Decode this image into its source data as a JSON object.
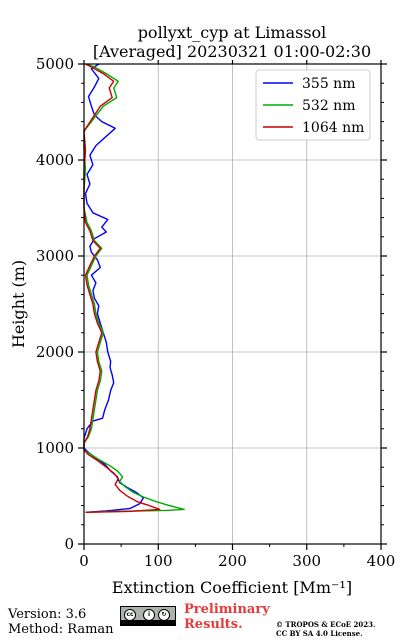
{
  "chart_data": {
    "type": "line",
    "title_lines": [
      "pollyxt_cyp at Limassol",
      "[Averaged] 20230321 01:00-02:30"
    ],
    "xlabel": "Extinction Coefficient [Mm⁻¹]",
    "ylabel": "Height (m)",
    "xlim": [
      0,
      400
    ],
    "ylim": [
      0,
      5000
    ],
    "x_ticks": [
      0,
      100,
      200,
      300,
      400
    ],
    "y_ticks": [
      0,
      1000,
      2000,
      3000,
      4000,
      5000
    ],
    "grid": true,
    "legend_position": "top-right",
    "series": [
      {
        "name": "355 nm",
        "color": "#0000ff",
        "points": [
          [
            2,
            330
          ],
          [
            30,
            345
          ],
          [
            62,
            370
          ],
          [
            75,
            420
          ],
          [
            80,
            480
          ],
          [
            70,
            540
          ],
          [
            58,
            590
          ],
          [
            48,
            640
          ],
          [
            45,
            700
          ],
          [
            36,
            760
          ],
          [
            28,
            830
          ],
          [
            15,
            900
          ],
          [
            5,
            960
          ],
          [
            0,
            1000
          ],
          [
            0,
            1100
          ],
          [
            4,
            1200
          ],
          [
            12,
            1280
          ],
          [
            25,
            1310
          ],
          [
            28,
            1400
          ],
          [
            33,
            1500
          ],
          [
            36,
            1600
          ],
          [
            40,
            1680
          ],
          [
            38,
            1760
          ],
          [
            35,
            1840
          ],
          [
            36,
            1900
          ],
          [
            32,
            2000
          ],
          [
            30,
            2100
          ],
          [
            26,
            2200
          ],
          [
            22,
            2300
          ],
          [
            18,
            2400
          ],
          [
            20,
            2480
          ],
          [
            14,
            2560
          ],
          [
            12,
            2640
          ],
          [
            16,
            2720
          ],
          [
            10,
            2800
          ],
          [
            22,
            2880
          ],
          [
            18,
            2960
          ],
          [
            10,
            3040
          ],
          [
            8,
            3100
          ],
          [
            14,
            3180
          ],
          [
            30,
            3250
          ],
          [
            24,
            3300
          ],
          [
            32,
            3380
          ],
          [
            12,
            3450
          ],
          [
            4,
            3550
          ],
          [
            2,
            3650
          ],
          [
            8,
            3750
          ],
          [
            4,
            3850
          ],
          [
            12,
            3950
          ],
          [
            8,
            4050
          ],
          [
            16,
            4150
          ],
          [
            42,
            4330
          ],
          [
            24,
            4400
          ],
          [
            14,
            4470
          ],
          [
            10,
            4560
          ],
          [
            6,
            4660
          ],
          [
            14,
            4760
          ],
          [
            20,
            4850
          ],
          [
            10,
            4950
          ],
          [
            20,
            5000
          ]
        ]
      },
      {
        "name": "532 nm",
        "color": "#00aa00",
        "points": [
          [
            2,
            330
          ],
          [
            40,
            340
          ],
          [
            110,
            350
          ],
          [
            135,
            360
          ],
          [
            115,
            400
          ],
          [
            98,
            440
          ],
          [
            80,
            490
          ],
          [
            66,
            540
          ],
          [
            55,
            600
          ],
          [
            48,
            650
          ],
          [
            52,
            700
          ],
          [
            45,
            760
          ],
          [
            36,
            810
          ],
          [
            20,
            880
          ],
          [
            8,
            940
          ],
          [
            0,
            980
          ],
          [
            0,
            1050
          ],
          [
            6,
            1120
          ],
          [
            10,
            1200
          ],
          [
            12,
            1300
          ],
          [
            14,
            1400
          ],
          [
            16,
            1500
          ],
          [
            18,
            1600
          ],
          [
            22,
            1700
          ],
          [
            24,
            1800
          ],
          [
            20,
            1900
          ],
          [
            18,
            2000
          ],
          [
            22,
            2100
          ],
          [
            26,
            2200
          ],
          [
            20,
            2300
          ],
          [
            16,
            2400
          ],
          [
            14,
            2500
          ],
          [
            10,
            2600
          ],
          [
            6,
            2700
          ],
          [
            4,
            2800
          ],
          [
            10,
            2900
          ],
          [
            16,
            3000
          ],
          [
            24,
            3080
          ],
          [
            14,
            3160
          ],
          [
            10,
            3260
          ],
          [
            4,
            3350
          ],
          [
            0,
            3500
          ],
          [
            0,
            3700
          ],
          [
            2,
            3900
          ],
          [
            0,
            4100
          ],
          [
            0,
            4300
          ],
          [
            12,
            4420
          ],
          [
            26,
            4560
          ],
          [
            44,
            4650
          ],
          [
            40,
            4750
          ],
          [
            46,
            4820
          ],
          [
            30,
            4900
          ],
          [
            16,
            4960
          ],
          [
            4,
            5000
          ]
        ]
      },
      {
        "name": "1064 nm",
        "color": "#cc0000",
        "points": [
          [
            2,
            330
          ],
          [
            60,
            340
          ],
          [
            102,
            360
          ],
          [
            88,
            400
          ],
          [
            72,
            440
          ],
          [
            58,
            500
          ],
          [
            48,
            560
          ],
          [
            42,
            620
          ],
          [
            46,
            680
          ],
          [
            40,
            740
          ],
          [
            30,
            800
          ],
          [
            18,
            870
          ],
          [
            6,
            930
          ],
          [
            0,
            980
          ],
          [
            0,
            1050
          ],
          [
            5,
            1120
          ],
          [
            8,
            1200
          ],
          [
            10,
            1300
          ],
          [
            12,
            1400
          ],
          [
            14,
            1500
          ],
          [
            16,
            1600
          ],
          [
            20,
            1700
          ],
          [
            22,
            1800
          ],
          [
            18,
            1900
          ],
          [
            16,
            2000
          ],
          [
            20,
            2100
          ],
          [
            24,
            2200
          ],
          [
            18,
            2300
          ],
          [
            14,
            2400
          ],
          [
            12,
            2500
          ],
          [
            8,
            2600
          ],
          [
            4,
            2700
          ],
          [
            2,
            2800
          ],
          [
            8,
            2900
          ],
          [
            14,
            3000
          ],
          [
            22,
            3080
          ],
          [
            12,
            3160
          ],
          [
            8,
            3260
          ],
          [
            2,
            3350
          ],
          [
            0,
            3500
          ],
          [
            0,
            3700
          ],
          [
            0,
            3900
          ],
          [
            2,
            4100
          ],
          [
            0,
            4300
          ],
          [
            10,
            4420
          ],
          [
            22,
            4560
          ],
          [
            38,
            4650
          ],
          [
            34,
            4750
          ],
          [
            40,
            4820
          ],
          [
            26,
            4900
          ],
          [
            12,
            4960
          ],
          [
            2,
            5000
          ]
        ]
      }
    ]
  },
  "footer": {
    "version": "Version: 3.6",
    "method": "Method: Raman",
    "preliminary_line1": "Preliminary",
    "preliminary_line2": "Results.",
    "copyright_line1": "© TROPOS & ECoE 2023.",
    "copyright_line2": "CC BY SA 4.0 License.",
    "license_badge": "cc by sa"
  }
}
